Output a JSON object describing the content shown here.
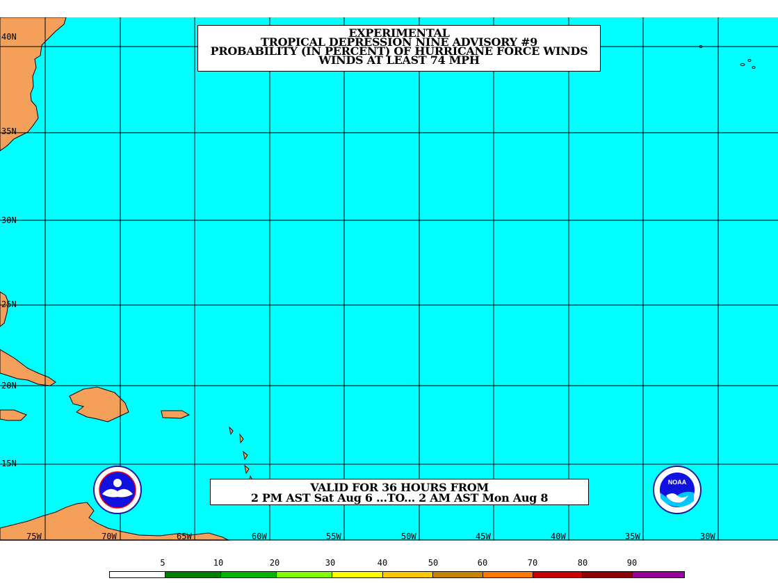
{
  "title": {
    "line1": "EXPERIMENTAL",
    "line2": "TROPICAL DEPRESSION NINE ADVISORY #9",
    "line3": "PROBABILITY (IN PERCENT) OF HURRICANE FORCE WINDS",
    "line4": "WINDS AT LEAST 74 MPH"
  },
  "valid": {
    "line1": "VALID FOR 36 HOURS FROM",
    "line2": "2 PM AST Sat Aug 6 ...TO... 2 AM AST Mon Aug 8"
  },
  "latitudes": [
    "40N",
    "35N",
    "30N",
    "25N",
    "20N",
    "15N"
  ],
  "longitudes": [
    "75W",
    "70W",
    "65W",
    "60W",
    "55W",
    "50W",
    "45W",
    "40W",
    "35W",
    "30W"
  ],
  "legend": {
    "labels": [
      "5",
      "10",
      "20",
      "30",
      "40",
      "50",
      "60",
      "70",
      "80",
      "90"
    ],
    "colors": [
      "#ffffff",
      "#008000",
      "#00b400",
      "#80ff00",
      "#ffff00",
      "#ffc800",
      "#c88200",
      "#ff7800",
      "#c80000",
      "#8c0000",
      "#960096"
    ]
  },
  "colors": {
    "ocean": "#00ffff",
    "land": "#f5a05a",
    "grid": "#000000"
  },
  "logos": {
    "left": "nws-seal-icon",
    "right": "noaa-seal-icon",
    "noaa_text": "NOAA"
  }
}
